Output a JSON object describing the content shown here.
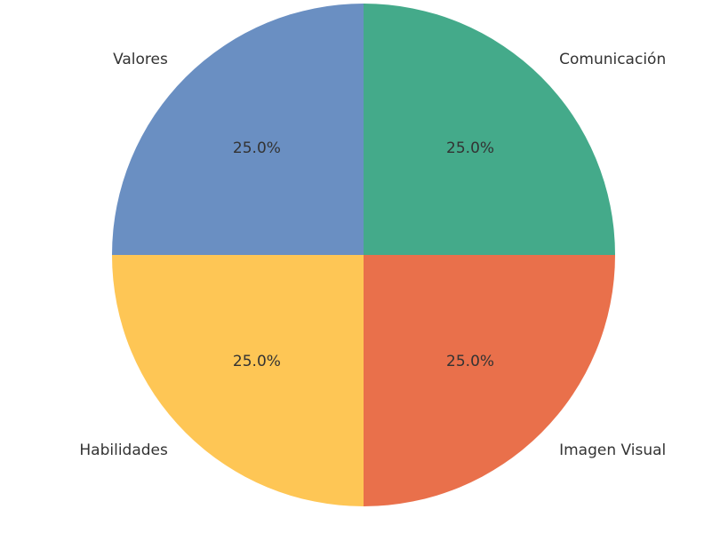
{
  "chart_data": {
    "type": "pie",
    "categories": [
      "Valores",
      "Habilidades",
      "Imagen Visual",
      "Comunicación"
    ],
    "values": [
      25,
      25,
      25,
      25
    ],
    "value_labels": [
      "25.0%",
      "25.0%",
      "25.0%",
      "25.0%"
    ],
    "colors": [
      "#6a8fc2",
      "#fec655",
      "#e9704b",
      "#44aa8a"
    ],
    "start_angle": 90
  }
}
